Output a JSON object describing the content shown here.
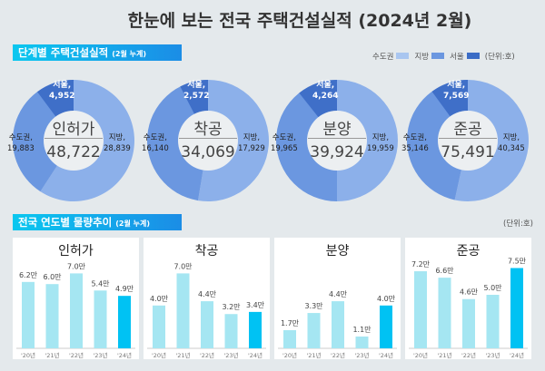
{
  "title": "한눈에 보는 전국 주택건설실적 (2024년 2월)",
  "section1": {
    "label": "단계별 주택건설실적",
    "note": "(2월 누계)"
  },
  "section2": {
    "label": "전국 연도별 물량추이",
    "note": "(2월 누계)"
  },
  "legend": {
    "items": [
      {
        "label": "수도권",
        "color": "#a9c6f0"
      },
      {
        "label": "지방",
        "color": "#6b97e0"
      },
      {
        "label": "서울",
        "color": "#3b6cc6"
      }
    ],
    "unit": "(단위:호)"
  },
  "unit2": "(단위:호)",
  "colors": {
    "jibang": "#8cb0ea",
    "sudo": "#6b97e0",
    "seoul": "#3f6fc8",
    "bar": "#a5e6f2",
    "bar_current": "#00c2f3"
  },
  "chart_data": [
    {
      "type": "pie",
      "title": "인허가",
      "total": "48,722",
      "segments": [
        {
          "name": "지방,",
          "value": 28839,
          "label": "28,839"
        },
        {
          "name": "수도권,",
          "value": 19883,
          "label": "19,883"
        },
        {
          "name": "서울,",
          "value": 4952,
          "label": "4,952"
        }
      ]
    },
    {
      "type": "pie",
      "title": "착공",
      "total": "34,069",
      "segments": [
        {
          "name": "지방,",
          "value": 17929,
          "label": "17,929"
        },
        {
          "name": "수도권,",
          "value": 16140,
          "label": "16,140"
        },
        {
          "name": "서울,",
          "value": 2572,
          "label": "2,572"
        }
      ]
    },
    {
      "type": "pie",
      "title": "분양",
      "total": "39,924",
      "segments": [
        {
          "name": "지방,",
          "value": 19959,
          "label": "19,959"
        },
        {
          "name": "수도권,",
          "value": 19965,
          "label": "19,965"
        },
        {
          "name": "서울,",
          "value": 4264,
          "label": "4,264"
        }
      ]
    },
    {
      "type": "pie",
      "title": "준공",
      "total": "75,491",
      "segments": [
        {
          "name": "지방,",
          "value": 40345,
          "label": "40,345"
        },
        {
          "name": "수도권,",
          "value": 35146,
          "label": "35,146"
        },
        {
          "name": "서울,",
          "value": 7569,
          "label": "7,569"
        }
      ]
    },
    {
      "type": "bar",
      "title": "인허가",
      "categories": [
        "'20년",
        "'21년",
        "'22년",
        "'23년",
        "'24년"
      ],
      "values": [
        6.2,
        6.0,
        7.0,
        5.4,
        4.9
      ],
      "labels": [
        "6.2만",
        "6.0만",
        "7.0만",
        "5.4만",
        "4.9만"
      ]
    },
    {
      "type": "bar",
      "title": "착공",
      "categories": [
        "'20년",
        "'21년",
        "'22년",
        "'23년",
        "'24년"
      ],
      "values": [
        4.0,
        7.0,
        4.4,
        3.2,
        3.4
      ],
      "labels": [
        "4.0만",
        "7.0만",
        "4.4만",
        "3.2만",
        "3.4만"
      ]
    },
    {
      "type": "bar",
      "title": "분양",
      "categories": [
        "'20년",
        "'21년",
        "'22년",
        "'23년",
        "'24년"
      ],
      "values": [
        1.7,
        3.3,
        4.4,
        1.1,
        4.0
      ],
      "labels": [
        "1.7만",
        "3.3만",
        "4.4만",
        "1.1만",
        "4.0만"
      ]
    },
    {
      "type": "bar",
      "title": "준공",
      "categories": [
        "'20년",
        "'21년",
        "'22년",
        "'23년",
        "'24년"
      ],
      "values": [
        7.2,
        6.6,
        4.6,
        5.0,
        7.5
      ],
      "labels": [
        "7.2만",
        "6.6만",
        "4.6만",
        "5.0만",
        "7.5만"
      ]
    }
  ]
}
